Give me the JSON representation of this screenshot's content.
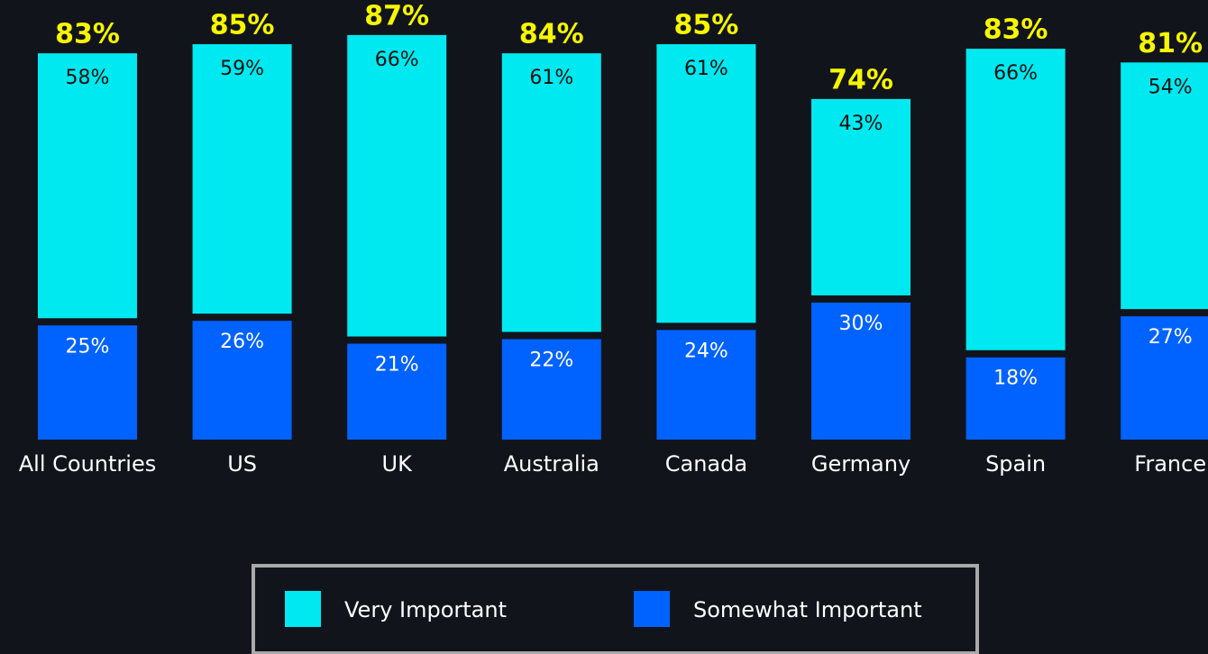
{
  "chart_data": {
    "type": "stacked-bar",
    "categories": [
      "All Countries",
      "US",
      "UK",
      "Australia",
      "Canada",
      "Germany",
      "Spain",
      "France"
    ],
    "series": [
      {
        "name": "Somewhat Important",
        "color": "#0062ff",
        "values": [
          25,
          26,
          21,
          22,
          24,
          30,
          18,
          27
        ],
        "value_labels": [
          "25%",
          "26%",
          "21%",
          "22%",
          "24%",
          "30%",
          "18%",
          "27%"
        ]
      },
      {
        "name": "Very Important",
        "color": "#00e9f0",
        "values": [
          58,
          59,
          66,
          61,
          61,
          43,
          66,
          54
        ],
        "value_labels": [
          "58%",
          "59%",
          "66%",
          "61%",
          "61%",
          "43%",
          "66%",
          "54%"
        ]
      }
    ],
    "totals": [
      83,
      85,
      87,
      84,
      85,
      74,
      83,
      81
    ],
    "total_labels": [
      "83%",
      "85%",
      "87%",
      "84%",
      "85%",
      "74%",
      "83%",
      "81%"
    ],
    "legend_order": [
      1,
      0
    ]
  }
}
